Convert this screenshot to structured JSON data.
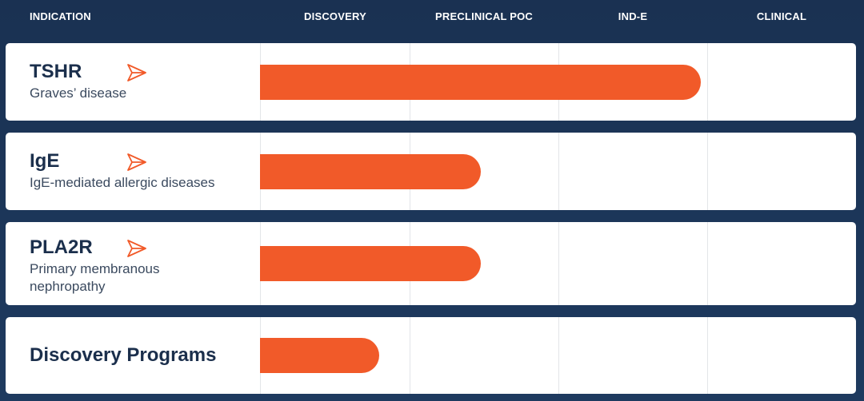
{
  "chart_data": {
    "type": "bar",
    "orientation": "horizontal",
    "stages": [
      "DISCOVERY",
      "PRECLINICAL POC",
      "IND-E",
      "CLINICAL"
    ],
    "header_first": "INDICATION",
    "rows": [
      {
        "name": "TSHR",
        "description": "Graves’ disease",
        "progress": 0.74,
        "arrow": true
      },
      {
        "name": "IgE",
        "description": "IgE-mediated allergic diseases",
        "progress": 0.37,
        "arrow": true
      },
      {
        "name": "PLA2R",
        "description": "Primary membranous nephropathy",
        "progress": 0.37,
        "arrow": true
      },
      {
        "name": "Discovery Programs",
        "description": "",
        "progress": 0.2,
        "arrow": false
      }
    ]
  },
  "colors": {
    "bar": "#f15a29",
    "background": "#1e3a5f",
    "text": "#1b2f4c",
    "arrow": "#f15a29"
  },
  "icons": {
    "row_marker": "send-arrow-icon"
  }
}
